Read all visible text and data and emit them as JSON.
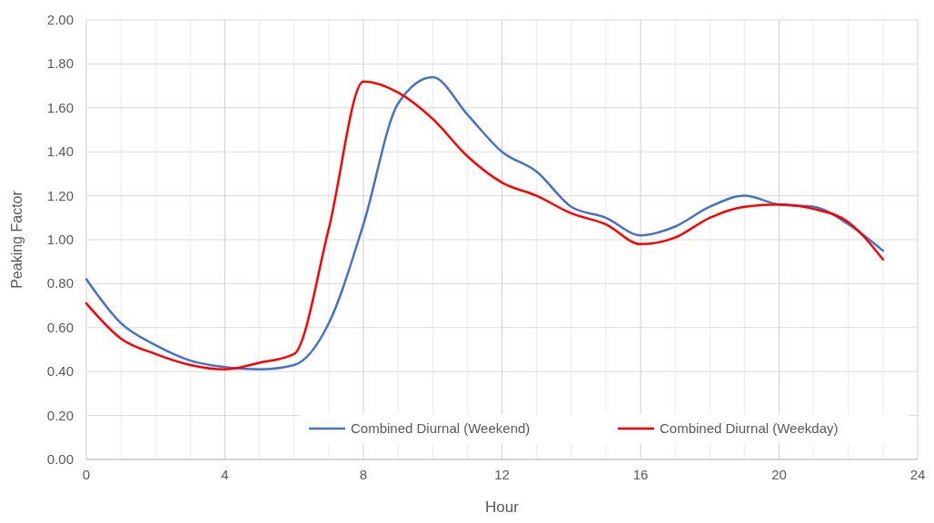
{
  "chart_data": {
    "type": "line",
    "xlabel": "Hour",
    "ylabel": "Peaking Factor",
    "x": [
      0,
      1,
      2,
      3,
      4,
      5,
      6,
      7,
      8,
      9,
      10,
      11,
      12,
      13,
      14,
      15,
      16,
      17,
      18,
      19,
      20,
      21,
      22,
      23
    ],
    "series": [
      {
        "name": "Combined Diurnal (Weekend)",
        "color": "#4472c4",
        "values": [
          0.82,
          0.62,
          0.52,
          0.45,
          0.42,
          0.41,
          0.43,
          0.62,
          1.07,
          1.62,
          1.74,
          1.57,
          1.4,
          1.31,
          1.15,
          1.1,
          1.02,
          1.06,
          1.15,
          1.2,
          1.16,
          1.15,
          1.07,
          0.95
        ]
      },
      {
        "name": "Combined Diurnal (Weekday)",
        "color": "#ff0000",
        "values": [
          0.71,
          0.55,
          0.48,
          0.43,
          0.41,
          0.44,
          0.48,
          1.05,
          1.72,
          1.67,
          1.55,
          1.38,
          1.26,
          1.2,
          1.12,
          1.07,
          0.98,
          1.01,
          1.1,
          1.15,
          1.16,
          1.14,
          1.08,
          0.91
        ]
      }
    ],
    "xlim": [
      0,
      24
    ],
    "xticks": [
      0,
      {
        "value": 1,
        "label": null
      },
      {
        "value": 2,
        "label": null
      },
      {
        "value": 3,
        "label": null
      },
      4,
      {
        "value": 5,
        "label": null
      },
      {
        "value": 6,
        "label": null
      },
      {
        "value": 7,
        "label": null
      },
      8,
      {
        "value": 9,
        "label": null
      },
      {
        "value": 10,
        "label": null
      },
      {
        "value": 11,
        "label": null
      },
      12,
      {
        "value": 13,
        "label": null
      },
      {
        "value": 14,
        "label": null
      },
      {
        "value": 15,
        "label": null
      },
      16,
      {
        "value": 17,
        "label": null
      },
      {
        "value": 18,
        "label": null
      },
      {
        "value": 19,
        "label": null
      },
      20,
      {
        "value": 21,
        "label": null
      },
      {
        "value": 22,
        "label": null
      },
      {
        "value": 23,
        "label": null
      },
      24
    ],
    "ylim": [
      0,
      2
    ],
    "yticks": [
      {
        "value": 0,
        "label": "0.00"
      },
      {
        "value": 0.2,
        "label": "0.20"
      },
      {
        "value": 0.4,
        "label": "0.40"
      },
      {
        "value": 0.6,
        "label": "0.60"
      },
      {
        "value": 0.8,
        "label": "0.80"
      },
      {
        "value": 1,
        "label": "1.00"
      },
      {
        "value": 1.2,
        "label": "1.20"
      },
      {
        "value": 1.4,
        "label": "1.40"
      },
      {
        "value": 1.6,
        "label": "1.60"
      },
      {
        "value": 1.8,
        "label": "1.80"
      },
      {
        "value": 2,
        "label": "2.00"
      }
    ],
    "grid": true,
    "legend": "bottom right",
    "marker": "none",
    "line_style": "solid"
  }
}
